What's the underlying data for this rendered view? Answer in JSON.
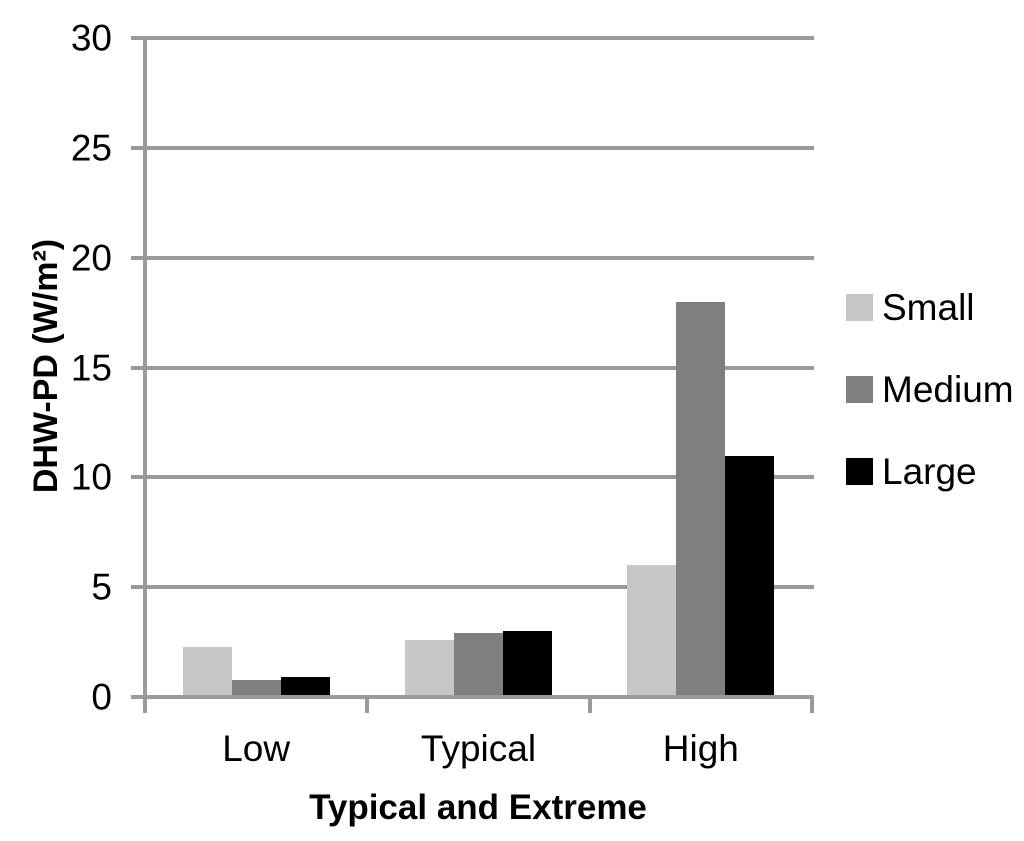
{
  "chart_data": {
    "type": "bar",
    "title": "",
    "xlabel": "Typical and Extreme",
    "ylabel": "DHW-PD (W/m²)",
    "categories": [
      "Low",
      "Typical",
      "High"
    ],
    "series": [
      {
        "name": "Small",
        "color": "#c6c6c6",
        "values": [
          2.2,
          2.5,
          5.9
        ]
      },
      {
        "name": "Medium",
        "color": "#7f7f7f",
        "values": [
          0.7,
          2.8,
          17.9
        ]
      },
      {
        "name": "Large",
        "color": "#000000",
        "values": [
          0.8,
          2.9,
          10.9
        ]
      }
    ],
    "ylim": [
      0,
      30
    ],
    "yticks": [
      0,
      5,
      10,
      15,
      20,
      25,
      30
    ],
    "grid": true,
    "legend_position": "right",
    "colors": {
      "grid": "#9a9a9a",
      "axis": "#9a9a9a",
      "text": "#000000",
      "background": "#ffffff"
    }
  }
}
